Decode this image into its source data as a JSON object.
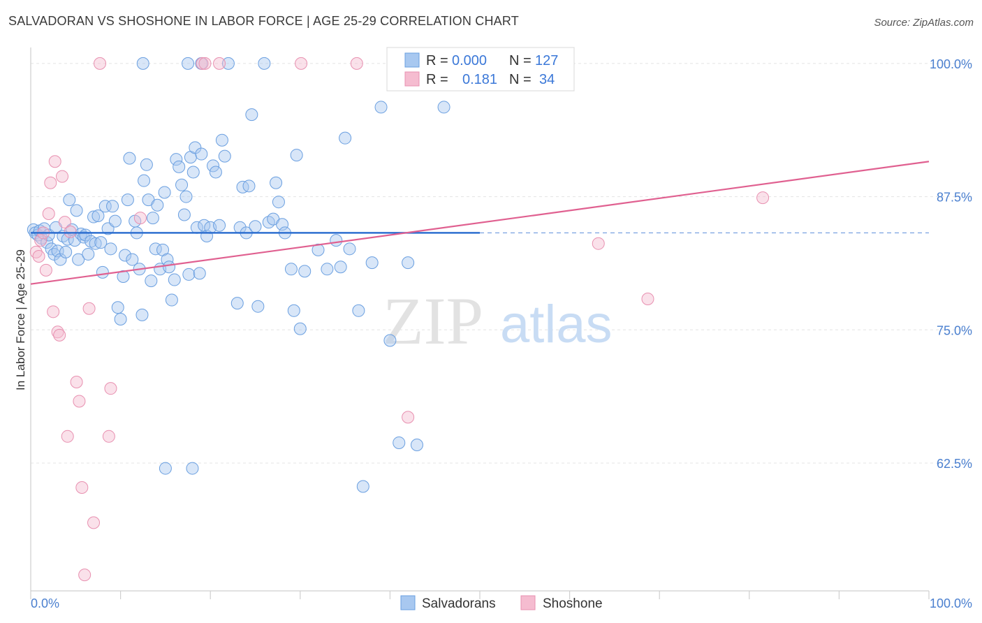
{
  "title": "SALVADORAN VS SHOSHONE IN LABOR FORCE | AGE 25-29 CORRELATION CHART",
  "source": "Source: ZipAtlas.com",
  "watermark": {
    "zip": "ZIP",
    "atlas": "atlas"
  },
  "legend_box": {
    "rows": [
      {
        "r_label": "R =",
        "r_value": "0.000",
        "n_label": "N =",
        "n_value": "127"
      },
      {
        "r_label": "R =",
        "r_value": "0.181",
        "n_label": "N =",
        "n_value": "34"
      }
    ]
  },
  "colors": {
    "salvadorans_fill": "#a8c8f0",
    "salvadorans_stroke": "#6a9fe0",
    "salvadorans_line": "#2e6fd0",
    "shoshone_fill": "#f5bcd0",
    "shoshone_stroke": "#e890b0",
    "shoshone_line": "#e06090",
    "tick_text": "#4a7fcf"
  },
  "chart_data": {
    "type": "scatter",
    "title": "SALVADORAN VS SHOSHONE IN LABOR FORCE | AGE 25-29 CORRELATION CHART",
    "xlabel": "",
    "ylabel": "In Labor Force | Age 25-29",
    "xlim": [
      0,
      100
    ],
    "ylim": [
      50.5,
      101.5
    ],
    "x_tick_labels": [
      "0.0%",
      "100.0%"
    ],
    "y_ticks": [
      62.5,
      75.0,
      87.5,
      100.0
    ],
    "y_tick_labels": [
      "62.5%",
      "75.0%",
      "87.5%",
      "100.0%"
    ],
    "grid": true,
    "legend_position": "bottom",
    "series": [
      {
        "name": "Salvadorans",
        "r": 0.0,
        "n": 127,
        "trend": {
          "x": [
            0,
            50
          ],
          "y": [
            84.1,
            84.1
          ],
          "dashed_extension_to": 100
        },
        "points": [
          [
            0.3,
            84.4
          ],
          [
            0.5,
            84.1
          ],
          [
            0.8,
            83.9
          ],
          [
            1.0,
            84.3
          ],
          [
            1.2,
            83.6
          ],
          [
            1.5,
            84.5
          ],
          [
            1.8,
            83.2
          ],
          [
            2.0,
            83.9
          ],
          [
            2.3,
            82.6
          ],
          [
            2.6,
            82.1
          ],
          [
            2.8,
            84.6
          ],
          [
            3.0,
            82.4
          ],
          [
            3.3,
            81.6
          ],
          [
            3.6,
            83.8
          ],
          [
            3.9,
            82.3
          ],
          [
            4.1,
            83.5
          ],
          [
            4.3,
            87.2
          ],
          [
            4.6,
            84.4
          ],
          [
            4.9,
            83.4
          ],
          [
            5.1,
            86.2
          ],
          [
            5.3,
            81.6
          ],
          [
            5.6,
            84.0
          ],
          [
            5.9,
            83.7
          ],
          [
            6.1,
            83.9
          ],
          [
            6.4,
            82.1
          ],
          [
            6.7,
            83.3
          ],
          [
            7.0,
            85.6
          ],
          [
            7.2,
            83.1
          ],
          [
            7.5,
            85.7
          ],
          [
            7.8,
            83.2
          ],
          [
            8.0,
            80.4
          ],
          [
            8.3,
            86.6
          ],
          [
            8.6,
            84.5
          ],
          [
            8.9,
            82.6
          ],
          [
            9.1,
            86.6
          ],
          [
            9.4,
            85.2
          ],
          [
            9.7,
            77.1
          ],
          [
            10.0,
            76.0
          ],
          [
            10.3,
            80.0
          ],
          [
            10.5,
            82.0
          ],
          [
            10.8,
            87.2
          ],
          [
            11.0,
            91.1
          ],
          [
            11.3,
            81.6
          ],
          [
            11.6,
            85.2
          ],
          [
            11.8,
            84.1
          ],
          [
            12.1,
            80.7
          ],
          [
            12.4,
            76.4
          ],
          [
            12.6,
            89.0
          ],
          [
            12.9,
            90.5
          ],
          [
            13.1,
            87.2
          ],
          [
            13.4,
            79.6
          ],
          [
            13.6,
            85.5
          ],
          [
            13.9,
            82.6
          ],
          [
            14.1,
            86.7
          ],
          [
            14.4,
            80.7
          ],
          [
            14.7,
            82.5
          ],
          [
            14.9,
            87.9
          ],
          [
            15.2,
            81.6
          ],
          [
            15.4,
            80.9
          ],
          [
            15.7,
            77.8
          ],
          [
            16.0,
            79.7
          ],
          [
            16.2,
            91.0
          ],
          [
            16.5,
            90.3
          ],
          [
            16.8,
            88.6
          ],
          [
            17.1,
            85.8
          ],
          [
            17.3,
            87.5
          ],
          [
            17.6,
            80.2
          ],
          [
            17.8,
            91.2
          ],
          [
            18.1,
            89.8
          ],
          [
            18.3,
            92.1
          ],
          [
            18.5,
            84.6
          ],
          [
            18.8,
            80.3
          ],
          [
            19.0,
            91.5
          ],
          [
            19.3,
            84.8
          ],
          [
            19.6,
            83.8
          ],
          [
            20.0,
            84.6
          ],
          [
            20.3,
            90.4
          ],
          [
            20.6,
            89.8
          ],
          [
            21.0,
            84.8
          ],
          [
            21.3,
            92.8
          ],
          [
            21.6,
            91.3
          ],
          [
            22.0,
            100.0
          ],
          [
            23.0,
            77.5
          ],
          [
            23.3,
            84.6
          ],
          [
            23.6,
            88.4
          ],
          [
            24.0,
            84.1
          ],
          [
            24.3,
            88.5
          ],
          [
            24.6,
            95.2
          ],
          [
            25.0,
            84.7
          ],
          [
            25.3,
            77.2
          ],
          [
            26.0,
            100.0
          ],
          [
            26.5,
            85.1
          ],
          [
            27.0,
            85.4
          ],
          [
            27.3,
            88.8
          ],
          [
            27.6,
            87.0
          ],
          [
            28.0,
            84.9
          ],
          [
            28.3,
            84.1
          ],
          [
            29.0,
            80.7
          ],
          [
            29.3,
            76.8
          ],
          [
            29.6,
            91.4
          ],
          [
            30.0,
            75.1
          ],
          [
            30.5,
            80.5
          ],
          [
            32.0,
            82.5
          ],
          [
            33.0,
            80.7
          ],
          [
            34.0,
            83.4
          ],
          [
            34.5,
            80.9
          ],
          [
            35.0,
            93.0
          ],
          [
            35.5,
            82.6
          ],
          [
            36.5,
            76.8
          ],
          [
            37.0,
            60.3
          ],
          [
            38.0,
            81.3
          ],
          [
            39.0,
            95.9
          ],
          [
            40.0,
            74.0
          ],
          [
            41.0,
            64.4
          ],
          [
            42.0,
            81.3
          ],
          [
            43.0,
            64.2
          ],
          [
            43.5,
            100.0
          ],
          [
            44.0,
            100.0
          ],
          [
            46.0,
            95.9
          ],
          [
            46.5,
            100.0
          ],
          [
            47.0,
            100.0
          ],
          [
            48.0,
            100.0
          ],
          [
            18.0,
            62.0
          ],
          [
            17.5,
            100.0
          ],
          [
            19.0,
            100.0
          ],
          [
            15.0,
            62.0
          ],
          [
            12.5,
            100.0
          ]
        ]
      },
      {
        "name": "Shoshone",
        "r": 0.181,
        "n": 34,
        "trend": {
          "x": [
            0,
            100
          ],
          "y": [
            79.3,
            90.8
          ]
        },
        "points": [
          [
            0.6,
            82.3
          ],
          [
            0.9,
            81.9
          ],
          [
            1.1,
            83.4
          ],
          [
            1.4,
            84.1
          ],
          [
            1.7,
            80.6
          ],
          [
            2.0,
            85.9
          ],
          [
            2.2,
            88.8
          ],
          [
            2.5,
            76.7
          ],
          [
            2.7,
            90.8
          ],
          [
            3.0,
            74.8
          ],
          [
            3.2,
            74.5
          ],
          [
            3.5,
            89.4
          ],
          [
            3.8,
            85.1
          ],
          [
            4.1,
            65.0
          ],
          [
            4.4,
            84.2
          ],
          [
            5.1,
            70.1
          ],
          [
            5.4,
            68.3
          ],
          [
            5.7,
            60.2
          ],
          [
            6.0,
            52.0
          ],
          [
            6.5,
            77.0
          ],
          [
            7.0,
            56.9
          ],
          [
            7.7,
            100.0
          ],
          [
            8.7,
            65.0
          ],
          [
            8.9,
            69.5
          ],
          [
            12.2,
            85.5
          ],
          [
            19.1,
            100.0
          ],
          [
            19.4,
            100.0
          ],
          [
            21.0,
            100.0
          ],
          [
            30.1,
            100.0
          ],
          [
            36.3,
            100.0
          ],
          [
            42.0,
            66.8
          ],
          [
            63.2,
            83.1
          ],
          [
            68.7,
            77.9
          ],
          [
            81.5,
            87.4
          ]
        ]
      }
    ]
  },
  "bottom_legend": [
    {
      "label": "Salvadorans"
    },
    {
      "label": "Shoshone"
    }
  ]
}
